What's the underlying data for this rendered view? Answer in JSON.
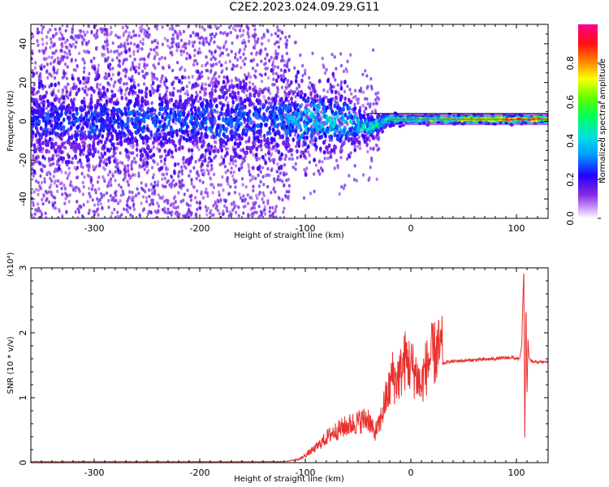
{
  "title": "C2E2.2023.024.09.29.G11",
  "colors": {
    "snr_line": "#e8302c",
    "noise_dot": "#a64cf2",
    "core_dot": "#4b00ff",
    "axis": "#000000"
  },
  "chart_data": [
    {
      "type": "heatmap",
      "xlabel": "Height of straight line (km)",
      "ylabel": "Frequency (Hz)",
      "xlim": [
        -360,
        130
      ],
      "ylim": [
        -50,
        50
      ],
      "x_ticks": [
        -300,
        -200,
        -100,
        0,
        100
      ],
      "y_ticks": [
        -40,
        -20,
        0,
        20,
        40
      ],
      "colorbar": {
        "label": "Normalized spectral amplitude",
        "range": [
          0,
          1
        ],
        "ticks": [
          "0.0",
          "0.2",
          "0.4",
          "0.6",
          "0.8"
        ],
        "colormap": "rainbow (violet to red)"
      },
      "ridge_frequency_hz": [
        {
          "x": -360,
          "y": 0,
          "spread": 10,
          "amplitude": 0.3
        },
        {
          "x": -120,
          "y": 0,
          "spread": 10,
          "amplitude": 0.35
        },
        {
          "x": -100,
          "y": 0,
          "spread": 10,
          "amplitude": 0.45
        },
        {
          "x": -60,
          "y": 0,
          "spread": 7,
          "amplitude": 0.45
        },
        {
          "x": -40,
          "y": -3,
          "spread": 3,
          "amplitude": 0.5
        },
        {
          "x": -20,
          "y": 1,
          "spread": 1.5,
          "amplitude": 0.55
        },
        {
          "x": 0,
          "y": 1,
          "spread": 1,
          "amplitude": 0.6
        },
        {
          "x": 50,
          "y": 1,
          "spread": 1,
          "amplitude": 0.9
        },
        {
          "x": 100,
          "y": 1,
          "spread": 1,
          "amplitude": 0.95
        },
        {
          "x": 130,
          "y": 1,
          "spread": 1,
          "amplitude": 0.95
        }
      ],
      "noise_extent": {
        "x_min": -360,
        "x_max": -115,
        "y_min": -50,
        "y_max": 50
      }
    },
    {
      "type": "line",
      "xlabel": "Height of straight line (km)",
      "ylabel": "SNR (10 * v/v)",
      "scale_label": "(x10⁴)",
      "xlim": [
        -360,
        130
      ],
      "ylim": [
        0,
        3
      ],
      "x_ticks": [
        -300,
        -200,
        -100,
        0,
        100
      ],
      "y_ticks": [
        0,
        1,
        2,
        3
      ],
      "series": [
        {
          "x": [
            -360,
            -300,
            -200,
            -120,
            -105,
            -90,
            -75,
            -60,
            -50,
            -40,
            -35,
            -30,
            -25,
            -20,
            -18,
            -15,
            -10,
            -5,
            0,
            5,
            10,
            12,
            15,
            20,
            25,
            30,
            35,
            40,
            50,
            60,
            80,
            95,
            100,
            103,
            105,
            106,
            107,
            108,
            109,
            110,
            111,
            112,
            115,
            120,
            130
          ],
          "y": [
            0.01,
            0.01,
            0.01,
            0.01,
            0.05,
            0.2,
            0.4,
            0.5,
            0.55,
            0.6,
            0.4,
            0.5,
            0.8,
            1.0,
            1.2,
            1.1,
            1.2,
            1.4,
            1.3,
            1.2,
            1.0,
            1.2,
            1.3,
            1.45,
            1.5,
            1.52,
            1.55,
            1.56,
            1.57,
            1.58,
            1.6,
            1.62,
            1.6,
            1.6,
            1.8,
            2.4,
            3.0,
            0.25,
            2.6,
            1.0,
            1.9,
            1.6,
            1.55,
            1.55,
            1.55
          ]
        }
      ]
    }
  ]
}
